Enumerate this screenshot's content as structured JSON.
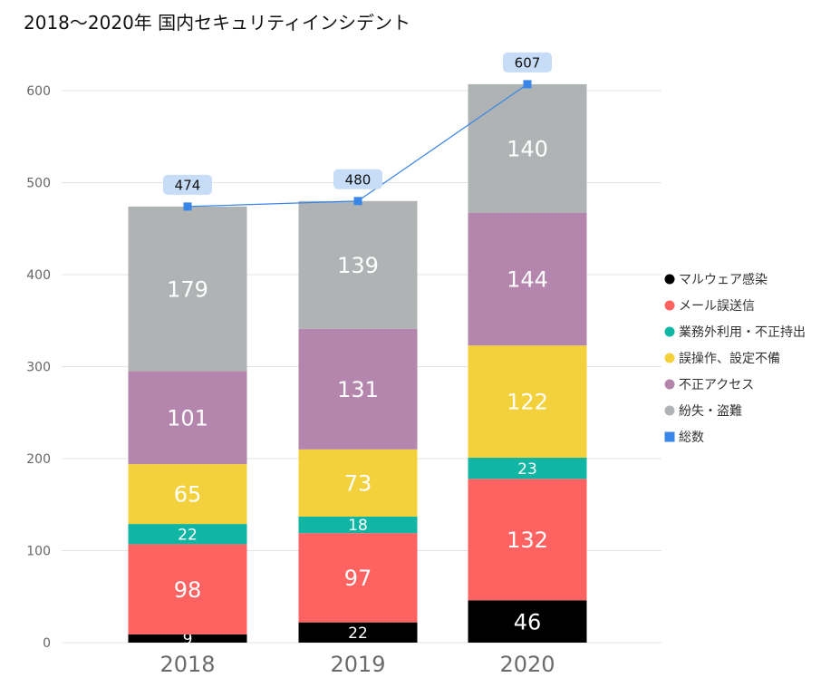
{
  "chart_data": {
    "type": "bar",
    "stacked": true,
    "title": "2018～2020年 国内セキュリティインシデント",
    "categories": [
      "2018",
      "2019",
      "2020"
    ],
    "ylim": [
      0,
      600
    ],
    "yticks": [
      0,
      100,
      200,
      300,
      400,
      500,
      600
    ],
    "series": [
      {
        "name": "マルウェア感染",
        "color": "#000000",
        "values": [
          9,
          22,
          46
        ]
      },
      {
        "name": "メール誤送信",
        "color": "#fe6361",
        "values": [
          98,
          97,
          132
        ]
      },
      {
        "name": "業務外利用・不正持出",
        "color": "#10b6a3",
        "values": [
          22,
          18,
          23
        ]
      },
      {
        "name": "誤操作、設定不備",
        "color": "#f3d13c",
        "values": [
          65,
          73,
          122
        ]
      },
      {
        "name": "不正アクセス",
        "color": "#b586ad",
        "values": [
          101,
          131,
          144
        ]
      },
      {
        "name": "紛失・盗難",
        "color": "#afb3b4",
        "values": [
          179,
          139,
          140
        ]
      }
    ],
    "total_series": {
      "name": "総数",
      "color": "#3a86e8",
      "label_bg": "#c6dcf7",
      "values": [
        474,
        480,
        607
      ]
    },
    "legend_position": "right",
    "grid": true
  }
}
